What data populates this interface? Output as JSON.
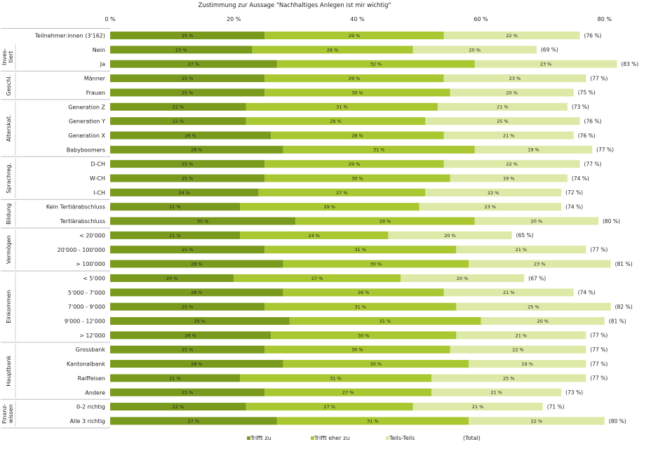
{
  "chart_data": {
    "type": "bar",
    "orientation": "horizontal",
    "stacked": true,
    "title": "Zustimmung zur Aussage \"Nachhaltiges Anlegen ist mir wichtig\"",
    "x_ticks": [
      "0 %",
      "20 %",
      "40 %",
      "60 %",
      "80 %"
    ],
    "xlim": [
      0,
      80
    ],
    "categories": [
      "Teilnehmer:innen (3'162)",
      "Nein",
      "Ja",
      "Männer",
      "Frauen",
      "Generation Z",
      "Generation Y",
      "Generation X",
      "Babyboomers",
      "D-CH",
      "W-CH",
      "I-CH",
      "Kein Tertiärabschluss",
      "Tertiärabschluss",
      "< 20'000",
      "20'000 - 100'000",
      "> 100'000",
      "< 5'000",
      "5'000 - 7'000",
      "7'000 - 9'000",
      "9'000 - 12'000",
      "> 12'000",
      "Grossbank",
      "Kantonalbank",
      "Raiffeisen",
      "Andere",
      "0-2 richtig",
      "Alle 3 richtig"
    ],
    "groups": [
      {
        "label": "Inves-\ntiert",
        "start": 1,
        "count": 2
      },
      {
        "label": "Geschl.",
        "start": 3,
        "count": 2
      },
      {
        "label": "Alterskat.",
        "start": 5,
        "count": 4
      },
      {
        "label": "Sprachreg.",
        "start": 9,
        "count": 3
      },
      {
        "label": "Bildung",
        "start": 12,
        "count": 2
      },
      {
        "label": "Vermögen",
        "start": 14,
        "count": 3
      },
      {
        "label": "Einkommen",
        "start": 17,
        "count": 5
      },
      {
        "label": "Hauptbank",
        "start": 22,
        "count": 4
      },
      {
        "label": "Finanz-\nwissen",
        "start": 26,
        "count": 2
      }
    ],
    "series": [
      {
        "name": "Trifft zu",
        "color": "#7a9a1e",
        "values": [
          25,
          23,
          27,
          25,
          25,
          22,
          22,
          26,
          28,
          25,
          25,
          24,
          21,
          30,
          21,
          25,
          28,
          20,
          28,
          25,
          29,
          26,
          25,
          28,
          21,
          25,
          22,
          27
        ]
      },
      {
        "name": "Trifft eher zu",
        "color": "#a9c731",
        "values": [
          29,
          26,
          32,
          29,
          30,
          31,
          29,
          28,
          31,
          29,
          30,
          27,
          29,
          29,
          24,
          31,
          30,
          27,
          26,
          31,
          31,
          30,
          30,
          30,
          31,
          27,
          27,
          31
        ]
      },
      {
        "name": "Teils-Teils",
        "color": "#dde9a7",
        "values": [
          22,
          20,
          23,
          23,
          20,
          21,
          25,
          21,
          19,
          22,
          19,
          22,
          23,
          20,
          20,
          21,
          23,
          20,
          21,
          25,
          20,
          21,
          22,
          19,
          25,
          21,
          21,
          22
        ]
      }
    ],
    "totals": [
      76,
      69,
      83,
      77,
      75,
      73,
      76,
      76,
      77,
      77,
      74,
      72,
      74,
      80,
      65,
      77,
      81,
      67,
      74,
      82,
      81,
      77,
      77,
      77,
      77,
      73,
      71,
      80
    ],
    "value_suffix": " %",
    "total_format": "({v} %)",
    "legend": [
      "Trifft zu",
      "Trifft eher zu",
      "Teils-Teils",
      "(Total)"
    ],
    "legend_position": "bottom",
    "grid": false
  }
}
